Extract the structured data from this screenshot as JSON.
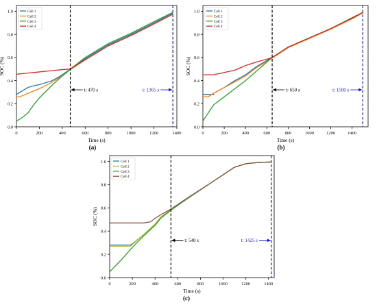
{
  "chart_data": [
    {
      "type": "line",
      "panel_label": "(a)",
      "xlabel": "Time (s)",
      "ylabel": "SOC (%)",
      "xlim": [
        0,
        1400
      ],
      "ylim": [
        0,
        1.05
      ],
      "xticks": [
        0,
        200,
        400,
        600,
        800,
        1000,
        1200,
        1400
      ],
      "yticks": [
        0,
        0.2,
        0.4,
        0.6,
        0.8,
        1.0
      ],
      "xtick_labels": [
        "0",
        "200",
        "400",
        "600",
        "800",
        "1000",
        "1200",
        "1400"
      ],
      "ytick_labels": [
        "0.0",
        "0.2",
        "0.4",
        "0.6",
        "0.8",
        "1.0"
      ],
      "grid": false,
      "legend_position": "top-left",
      "series": [
        {
          "name": "Cell 1",
          "color": "#1f77b4",
          "x": [
            0,
            50,
            100,
            150,
            200,
            250,
            300,
            350,
            400,
            470,
            600,
            800,
            1000,
            1200,
            1365
          ],
          "y": [
            0.28,
            0.31,
            0.34,
            0.355,
            0.365,
            0.38,
            0.395,
            0.42,
            0.45,
            0.5,
            0.59,
            0.71,
            0.8,
            0.9,
            0.985
          ]
        },
        {
          "name": "Cell 2",
          "color": "#ff7f0e",
          "x": [
            0,
            30,
            100,
            200,
            300,
            400,
            470,
            600,
            800,
            1000,
            1200,
            1365
          ],
          "y": [
            0.26,
            0.26,
            0.29,
            0.33,
            0.38,
            0.44,
            0.495,
            0.58,
            0.7,
            0.79,
            0.89,
            0.975
          ]
        },
        {
          "name": "Cell 3",
          "color": "#2ca02c",
          "x": [
            0,
            50,
            100,
            150,
            200,
            300,
            400,
            470,
            600,
            800,
            1000,
            1200,
            1365
          ],
          "y": [
            0.05,
            0.08,
            0.12,
            0.19,
            0.25,
            0.35,
            0.44,
            0.5,
            0.6,
            0.72,
            0.81,
            0.91,
            0.99
          ]
        },
        {
          "name": "Cell 4",
          "color": "#d62728",
          "x": [
            0,
            100,
            200,
            300,
            400,
            470,
            600,
            800,
            1000,
            1200,
            1365
          ],
          "y": [
            0.455,
            0.465,
            0.475,
            0.485,
            0.495,
            0.5,
            0.58,
            0.7,
            0.79,
            0.89,
            0.975
          ]
        }
      ],
      "vlines": [
        {
          "x": 470,
          "color": "#000000",
          "style": "dashed"
        },
        {
          "x": 1365,
          "color": "#1a1acc",
          "style": "dashed"
        }
      ],
      "annotations": [
        {
          "text": "t: 470 s",
          "x": 470,
          "y": 0.32,
          "arrow": "left",
          "color": "#000000"
        },
        {
          "text": "t: 1365 s",
          "x": 1365,
          "y": 0.32,
          "arrow": "right",
          "color": "#1a1acc"
        }
      ]
    },
    {
      "type": "line",
      "panel_label": "(b)",
      "xlabel": "Time (s)",
      "ylabel": "SOC (%)",
      "xlim": [
        0,
        1550
      ],
      "ylim": [
        0,
        1.05
      ],
      "xticks": [
        0,
        200,
        400,
        600,
        800,
        1000,
        1200,
        1400
      ],
      "yticks": [
        0,
        0.2,
        0.4,
        0.6,
        0.8,
        1.0
      ],
      "xtick_labels": [
        "0",
        "200",
        "400",
        "600",
        "800",
        "1000",
        "1200",
        "1400"
      ],
      "ytick_labels": [
        "0.0",
        "0.2",
        "0.4",
        "0.6",
        "0.8",
        "1.0"
      ],
      "grid": false,
      "legend_position": "top-left",
      "series": [
        {
          "name": "Cell 1",
          "color": "#1f77b4",
          "x": [
            0,
            100,
            101,
            200,
            300,
            400,
            500,
            650,
            800,
            1000,
            1200,
            1400,
            1500
          ],
          "y": [
            0.28,
            0.28,
            0.29,
            0.34,
            0.4,
            0.45,
            0.52,
            0.6,
            0.69,
            0.77,
            0.85,
            0.94,
            0.99
          ]
        },
        {
          "name": "Cell 2",
          "color": "#ff7f0e",
          "x": [
            0,
            50,
            100,
            200,
            300,
            400,
            500,
            650,
            800,
            1000,
            1200,
            1400,
            1500
          ],
          "y": [
            0.26,
            0.26,
            0.29,
            0.34,
            0.39,
            0.44,
            0.51,
            0.595,
            0.685,
            0.765,
            0.845,
            0.935,
            0.985
          ]
        },
        {
          "name": "Cell 3",
          "color": "#2ca02c",
          "x": [
            0,
            100,
            200,
            300,
            400,
            500,
            650,
            800,
            1000,
            1200,
            1400,
            1500
          ],
          "y": [
            0.05,
            0.19,
            0.26,
            0.33,
            0.4,
            0.48,
            0.6,
            0.69,
            0.77,
            0.85,
            0.945,
            0.99
          ]
        },
        {
          "name": "Cell 4",
          "color": "#d62728",
          "x": [
            0,
            100,
            200,
            300,
            350,
            400,
            500,
            600,
            650,
            800,
            1000,
            1200,
            1400,
            1500
          ],
          "y": [
            0.45,
            0.45,
            0.47,
            0.49,
            0.51,
            0.53,
            0.56,
            0.585,
            0.6,
            0.69,
            0.77,
            0.85,
            0.94,
            0.99
          ]
        }
      ],
      "vlines": [
        {
          "x": 650,
          "color": "#000000",
          "style": "dashed"
        },
        {
          "x": 1500,
          "color": "#1a1acc",
          "style": "dashed"
        }
      ],
      "annotations": [
        {
          "text": "t: 650 s",
          "x": 650,
          "y": 0.32,
          "arrow": "left",
          "color": "#000000"
        },
        {
          "text": "t: 1500 s",
          "x": 1500,
          "y": 0.32,
          "arrow": "right",
          "color": "#1a1acc"
        }
      ]
    },
    {
      "type": "line",
      "panel_label": "(c)",
      "xlabel": "Time (s)",
      "ylabel": "SOC (%)",
      "xlim": [
        0,
        1450
      ],
      "ylim": [
        0,
        1.05
      ],
      "xticks": [
        0,
        200,
        400,
        600,
        800,
        1000,
        1200,
        1400
      ],
      "yticks": [
        0,
        0.2,
        0.4,
        0.6,
        0.8,
        1.0
      ],
      "xtick_labels": [
        "0",
        "200",
        "400",
        "600",
        "800",
        "1000",
        "1200",
        "1400"
      ],
      "ytick_labels": [
        "0.0",
        "0.2",
        "0.4",
        "0.6",
        "0.8",
        "1.0"
      ],
      "grid": false,
      "legend_position": "top-left",
      "series": [
        {
          "name": "Cell 1",
          "color": "#1f77b4",
          "x": [
            0,
            180,
            200,
            300,
            400,
            450,
            540,
            700,
            900,
            1100,
            1200,
            1300,
            1425
          ],
          "y": [
            0.28,
            0.28,
            0.29,
            0.37,
            0.46,
            0.52,
            0.585,
            0.69,
            0.82,
            0.95,
            0.98,
            0.99,
            0.995
          ]
        },
        {
          "name": "Cell 2",
          "color": "#bcbd22",
          "x": [
            0,
            180,
            200,
            300,
            400,
            450,
            540,
            700,
            900,
            1100,
            1200,
            1300,
            1425
          ],
          "y": [
            0.27,
            0.27,
            0.285,
            0.37,
            0.46,
            0.52,
            0.585,
            0.69,
            0.82,
            0.95,
            0.98,
            0.99,
            0.995
          ]
        },
        {
          "name": "Cell 3",
          "color": "#2ca02c",
          "x": [
            0,
            100,
            200,
            300,
            400,
            450,
            540,
            700,
            900,
            1100,
            1200,
            1300,
            1425
          ],
          "y": [
            0.05,
            0.15,
            0.26,
            0.36,
            0.45,
            0.51,
            0.58,
            0.69,
            0.82,
            0.95,
            0.98,
            0.99,
            0.995
          ]
        },
        {
          "name": "Cell 4",
          "color": "#8c564b",
          "x": [
            0,
            300,
            360,
            400,
            450,
            540,
            700,
            900,
            1100,
            1200,
            1300,
            1425
          ],
          "y": [
            0.47,
            0.47,
            0.48,
            0.51,
            0.54,
            0.59,
            0.695,
            0.82,
            0.95,
            0.98,
            0.99,
            0.995
          ]
        }
      ],
      "vlines": [
        {
          "x": 540,
          "color": "#000000",
          "style": "dashed"
        },
        {
          "x": 1425,
          "color": "#1a1acc",
          "style": "dashed"
        }
      ],
      "annotations": [
        {
          "text": "t: 540 s",
          "x": 540,
          "y": 0.32,
          "arrow": "left",
          "color": "#000000"
        },
        {
          "text": "t: 1425 s",
          "x": 1425,
          "y": 0.32,
          "arrow": "right",
          "color": "#1a1acc"
        }
      ]
    }
  ]
}
